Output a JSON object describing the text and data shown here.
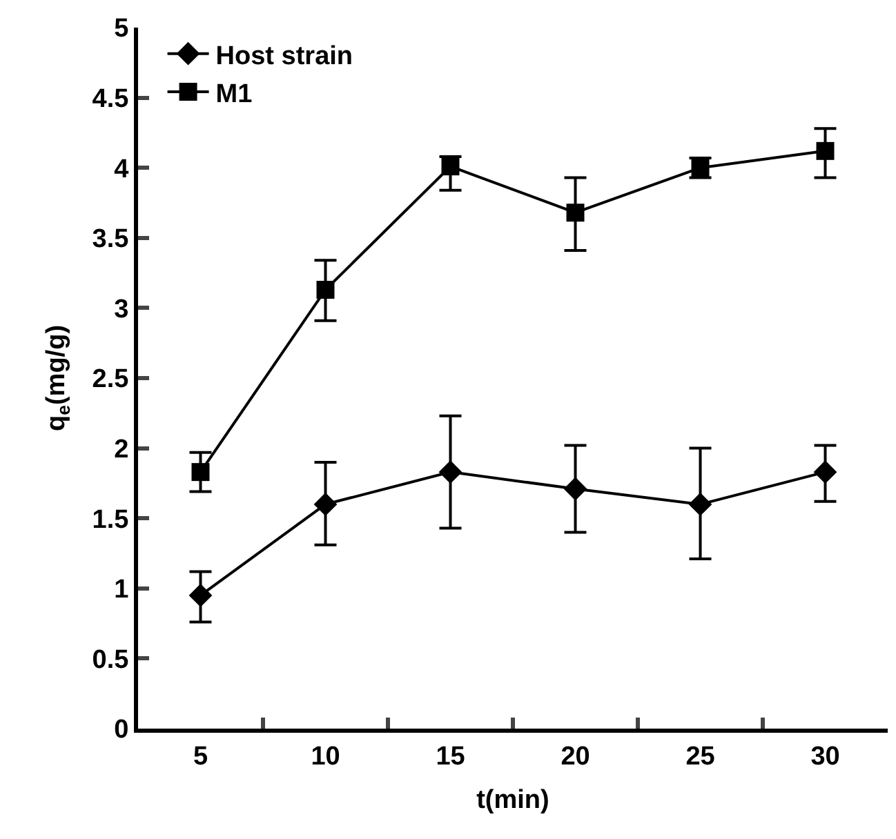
{
  "chart_data": {
    "type": "line",
    "xlabel": "t(min)",
    "ylabel": "q$_{e}$(mg/g)",
    "categories": [
      "5",
      "10",
      "15",
      "20",
      "25",
      "30"
    ],
    "series": [
      {
        "name": "Host strain",
        "color": "#000000",
        "marker": "diamond",
        "values": [
          0.95,
          1.6,
          1.83,
          1.71,
          1.6,
          1.83
        ],
        "errors": [
          [
            0.76,
            1.12
          ],
          [
            1.31,
            1.9
          ],
          [
            1.43,
            2.23
          ],
          [
            1.4,
            2.02
          ],
          [
            1.21,
            2.0
          ],
          [
            1.62,
            2.02
          ]
        ]
      },
      {
        "name": "M1",
        "color": "#000000",
        "marker": "square",
        "values": [
          1.83,
          3.13,
          4.01,
          3.68,
          4.0,
          4.12
        ],
        "errors": [
          [
            1.69,
            1.97
          ],
          [
            2.91,
            3.34
          ],
          [
            3.84,
            4.08
          ],
          [
            3.41,
            3.93
          ],
          [
            3.93,
            4.07
          ],
          [
            3.93,
            4.28
          ]
        ]
      }
    ],
    "ylim": [
      0,
      5
    ],
    "yticks": [
      0,
      0.5,
      1,
      1.5,
      2,
      2.5,
      3,
      3.5,
      4,
      4.5,
      5
    ],
    "legend": "top left",
    "line_style": "solid"
  }
}
